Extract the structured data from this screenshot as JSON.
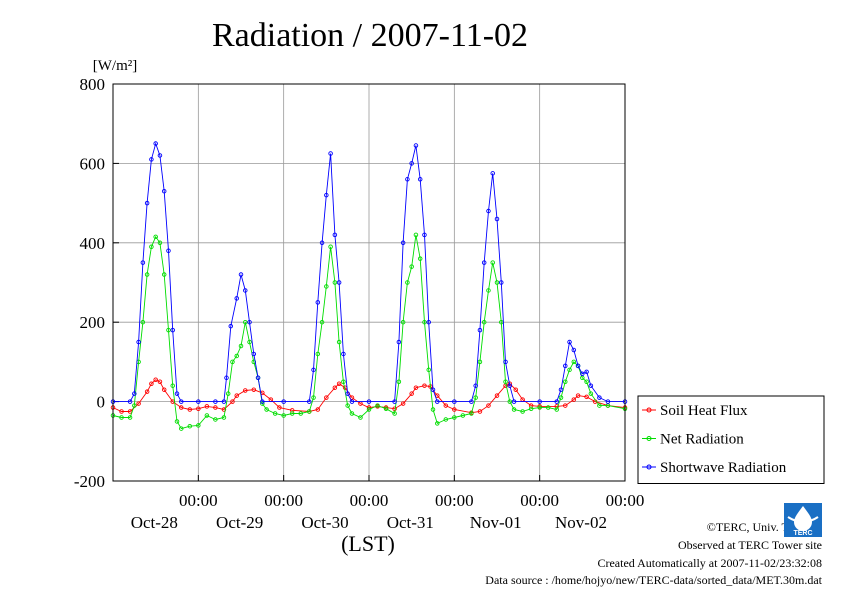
{
  "chart_data": {
    "type": "line",
    "title": "Radiation / 2007-11-02",
    "ylabel_unit": "[W/m²]",
    "xlabel": "(LST)",
    "ylim": [
      -200,
      800
    ],
    "yticks": [
      800,
      600,
      400,
      200,
      0,
      -200
    ],
    "xlim": [
      0,
      6
    ],
    "xticks": [
      {
        "pos": 1,
        "time": "00:00",
        "date": "Oct-28"
      },
      {
        "pos": 2,
        "time": "00:00",
        "date": "Oct-29"
      },
      {
        "pos": 3,
        "time": "00:00",
        "date": "Oct-30"
      },
      {
        "pos": 4,
        "time": "00:00",
        "date": "Oct-31"
      },
      {
        "pos": 5,
        "time": "00:00",
        "date": "Nov-01"
      },
      {
        "pos": 6,
        "time": "00:00",
        "date": "Nov-02"
      }
    ],
    "grid": true,
    "legend_position": "right",
    "series": [
      {
        "name": "Soil Heat Flux",
        "color": "#ff0000",
        "points": [
          [
            0,
            -15
          ],
          [
            0.1,
            -25
          ],
          [
            0.2,
            -25
          ],
          [
            0.3,
            -5
          ],
          [
            0.4,
            25
          ],
          [
            0.45,
            45
          ],
          [
            0.5,
            55
          ],
          [
            0.55,
            50
          ],
          [
            0.6,
            30
          ],
          [
            0.7,
            0
          ],
          [
            0.8,
            -15
          ],
          [
            0.9,
            -20
          ],
          [
            1.0,
            -18
          ],
          [
            1.1,
            -12
          ],
          [
            1.2,
            -15
          ],
          [
            1.3,
            -20
          ],
          [
            1.4,
            0
          ],
          [
            1.45,
            15
          ],
          [
            1.55,
            28
          ],
          [
            1.65,
            30
          ],
          [
            1.75,
            22
          ],
          [
            1.85,
            5
          ],
          [
            1.95,
            -15
          ],
          [
            2.1,
            -22
          ],
          [
            2.3,
            -25
          ],
          [
            2.4,
            -20
          ],
          [
            2.5,
            10
          ],
          [
            2.6,
            35
          ],
          [
            2.65,
            45
          ],
          [
            2.72,
            35
          ],
          [
            2.8,
            10
          ],
          [
            2.9,
            -5
          ],
          [
            3.0,
            -15
          ],
          [
            3.1,
            -12
          ],
          [
            3.2,
            -15
          ],
          [
            3.3,
            -18
          ],
          [
            3.4,
            -5
          ],
          [
            3.5,
            20
          ],
          [
            3.55,
            35
          ],
          [
            3.65,
            40
          ],
          [
            3.72,
            38
          ],
          [
            3.8,
            15
          ],
          [
            3.9,
            -10
          ],
          [
            4.0,
            -20
          ],
          [
            4.2,
            -28
          ],
          [
            4.3,
            -25
          ],
          [
            4.4,
            -10
          ],
          [
            4.5,
            15
          ],
          [
            4.6,
            40
          ],
          [
            4.65,
            45
          ],
          [
            4.72,
            30
          ],
          [
            4.8,
            5
          ],
          [
            4.9,
            -10
          ],
          [
            5.0,
            -12
          ],
          [
            5.2,
            -12
          ],
          [
            5.3,
            -10
          ],
          [
            5.4,
            5
          ],
          [
            5.45,
            15
          ],
          [
            5.55,
            12
          ],
          [
            5.65,
            0
          ],
          [
            5.8,
            -10
          ],
          [
            6.0,
            -15
          ]
        ]
      },
      {
        "name": "Net Radiation",
        "color": "#00dd00",
        "points": [
          [
            0,
            -35
          ],
          [
            0.1,
            -40
          ],
          [
            0.2,
            -40
          ],
          [
            0.25,
            -10
          ],
          [
            0.3,
            100
          ],
          [
            0.35,
            200
          ],
          [
            0.4,
            320
          ],
          [
            0.45,
            390
          ],
          [
            0.5,
            415
          ],
          [
            0.55,
            400
          ],
          [
            0.6,
            320
          ],
          [
            0.65,
            180
          ],
          [
            0.7,
            40
          ],
          [
            0.75,
            -50
          ],
          [
            0.8,
            -68
          ],
          [
            0.9,
            -62
          ],
          [
            1.0,
            -60
          ],
          [
            1.1,
            -35
          ],
          [
            1.2,
            -45
          ],
          [
            1.3,
            -40
          ],
          [
            1.35,
            20
          ],
          [
            1.4,
            100
          ],
          [
            1.45,
            115
          ],
          [
            1.5,
            140
          ],
          [
            1.55,
            200
          ],
          [
            1.6,
            150
          ],
          [
            1.65,
            100
          ],
          [
            1.7,
            60
          ],
          [
            1.75,
            -5
          ],
          [
            1.8,
            -20
          ],
          [
            1.9,
            -30
          ],
          [
            2.0,
            -35
          ],
          [
            2.1,
            -30
          ],
          [
            2.2,
            -30
          ],
          [
            2.3,
            -25
          ],
          [
            2.35,
            10
          ],
          [
            2.4,
            120
          ],
          [
            2.45,
            200
          ],
          [
            2.5,
            290
          ],
          [
            2.55,
            390
          ],
          [
            2.6,
            300
          ],
          [
            2.65,
            150
          ],
          [
            2.7,
            50
          ],
          [
            2.75,
            -10
          ],
          [
            2.8,
            -30
          ],
          [
            2.9,
            -40
          ],
          [
            3.0,
            -20
          ],
          [
            3.1,
            -10
          ],
          [
            3.2,
            -18
          ],
          [
            3.3,
            -30
          ],
          [
            3.35,
            50
          ],
          [
            3.4,
            200
          ],
          [
            3.45,
            300
          ],
          [
            3.5,
            340
          ],
          [
            3.55,
            420
          ],
          [
            3.6,
            360
          ],
          [
            3.65,
            200
          ],
          [
            3.7,
            80
          ],
          [
            3.75,
            -20
          ],
          [
            3.8,
            -55
          ],
          [
            3.9,
            -45
          ],
          [
            4.0,
            -40
          ],
          [
            4.1,
            -35
          ],
          [
            4.2,
            -30
          ],
          [
            4.25,
            10
          ],
          [
            4.3,
            100
          ],
          [
            4.35,
            200
          ],
          [
            4.4,
            280
          ],
          [
            4.45,
            350
          ],
          [
            4.5,
            300
          ],
          [
            4.55,
            200
          ],
          [
            4.6,
            50
          ],
          [
            4.65,
            0
          ],
          [
            4.7,
            -20
          ],
          [
            4.8,
            -25
          ],
          [
            4.9,
            -18
          ],
          [
            5.0,
            -15
          ],
          [
            5.1,
            -15
          ],
          [
            5.2,
            -20
          ],
          [
            5.25,
            10
          ],
          [
            5.3,
            50
          ],
          [
            5.35,
            80
          ],
          [
            5.4,
            100
          ],
          [
            5.45,
            90
          ],
          [
            5.5,
            60
          ],
          [
            5.55,
            50
          ],
          [
            5.6,
            20
          ],
          [
            5.7,
            -10
          ],
          [
            5.8,
            -10
          ],
          [
            6.0,
            -18
          ]
        ]
      },
      {
        "name": "Shortwave Radiation",
        "color": "#0000ff",
        "points": [
          [
            0,
            0
          ],
          [
            0.2,
            0
          ],
          [
            0.25,
            20
          ],
          [
            0.3,
            150
          ],
          [
            0.35,
            350
          ],
          [
            0.4,
            500
          ],
          [
            0.45,
            610
          ],
          [
            0.5,
            650
          ],
          [
            0.55,
            620
          ],
          [
            0.6,
            530
          ],
          [
            0.65,
            380
          ],
          [
            0.7,
            180
          ],
          [
            0.75,
            20
          ],
          [
            0.8,
            0
          ],
          [
            1.0,
            0
          ],
          [
            1.2,
            0
          ],
          [
            1.3,
            0
          ],
          [
            1.33,
            60
          ],
          [
            1.38,
            190
          ],
          [
            1.45,
            260
          ],
          [
            1.5,
            320
          ],
          [
            1.55,
            280
          ],
          [
            1.6,
            200
          ],
          [
            1.65,
            120
          ],
          [
            1.7,
            60
          ],
          [
            1.75,
            0
          ],
          [
            2.0,
            0
          ],
          [
            2.3,
            0
          ],
          [
            2.35,
            80
          ],
          [
            2.4,
            250
          ],
          [
            2.45,
            400
          ],
          [
            2.5,
            520
          ],
          [
            2.55,
            625
          ],
          [
            2.6,
            420
          ],
          [
            2.65,
            300
          ],
          [
            2.7,
            120
          ],
          [
            2.75,
            20
          ],
          [
            2.8,
            0
          ],
          [
            3.0,
            0
          ],
          [
            3.3,
            0
          ],
          [
            3.35,
            150
          ],
          [
            3.4,
            400
          ],
          [
            3.45,
            560
          ],
          [
            3.5,
            600
          ],
          [
            3.55,
            645
          ],
          [
            3.6,
            560
          ],
          [
            3.65,
            420
          ],
          [
            3.7,
            200
          ],
          [
            3.75,
            30
          ],
          [
            3.8,
            0
          ],
          [
            4.0,
            0
          ],
          [
            4.2,
            0
          ],
          [
            4.25,
            40
          ],
          [
            4.3,
            180
          ],
          [
            4.35,
            350
          ],
          [
            4.4,
            480
          ],
          [
            4.45,
            575
          ],
          [
            4.5,
            460
          ],
          [
            4.55,
            300
          ],
          [
            4.6,
            100
          ],
          [
            4.65,
            40
          ],
          [
            4.7,
            0
          ],
          [
            5.0,
            0
          ],
          [
            5.2,
            0
          ],
          [
            5.25,
            30
          ],
          [
            5.3,
            90
          ],
          [
            5.35,
            150
          ],
          [
            5.4,
            130
          ],
          [
            5.45,
            90
          ],
          [
            5.5,
            70
          ],
          [
            5.55,
            75
          ],
          [
            5.6,
            40
          ],
          [
            5.7,
            10
          ],
          [
            5.8,
            0
          ],
          [
            6.0,
            0
          ]
        ]
      }
    ]
  },
  "credits": {
    "copyright": "©TERC, Univ. Tsukuba",
    "observed": "Observed at TERC Tower site",
    "created": "Created Automatically at 2007-11-02/23:32:08",
    "source": "Data source : /home/hojyo/new/TERC-data/sorted_data/MET.30m.dat",
    "logo_text": "TERC"
  }
}
